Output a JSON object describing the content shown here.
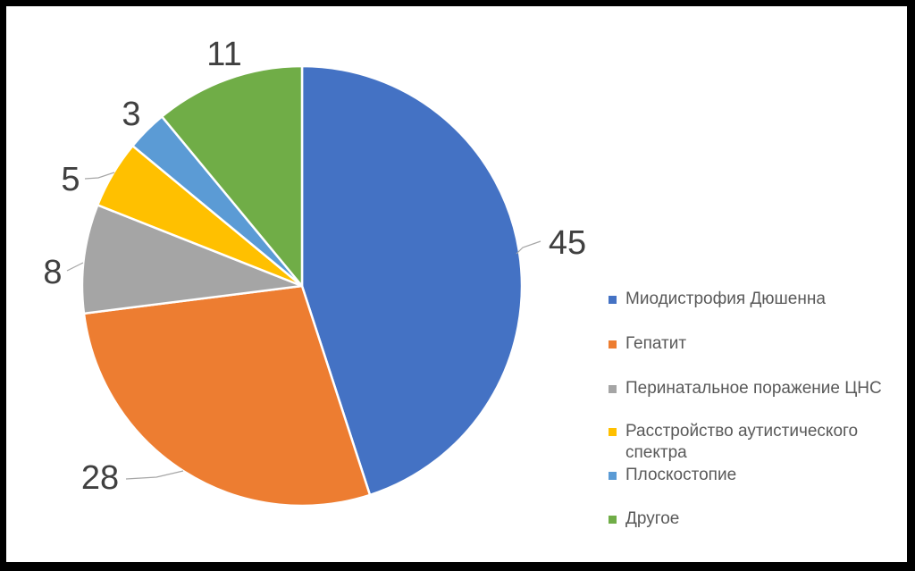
{
  "chart_data": {
    "type": "pie",
    "title": "",
    "categories": [
      "Миодистрофия Дюшенна",
      "Гепатит",
      "Перинатальное поражение ЦНС",
      "Расстройство аутистического спектра",
      "Плоскостопие",
      "Другое"
    ],
    "values": [
      45,
      28,
      8,
      5,
      3,
      11
    ],
    "colors": [
      "#4472C4",
      "#ED7D31",
      "#A5A5A5",
      "#FFC000",
      "#5B9BD5",
      "#70AD47"
    ],
    "legend_position": "right",
    "data_labels": [
      "45",
      "28",
      "8",
      "5",
      "3",
      "11"
    ]
  },
  "legend": {
    "items": [
      {
        "label": "Миодистрофия Дюшенна",
        "color": "#4472C4"
      },
      {
        "label": "Гепатит",
        "color": "#ED7D31"
      },
      {
        "label": "Перинатальное поражение ЦНС",
        "color": "#A5A5A5"
      },
      {
        "label": "Расстройство аутистического спектра",
        "color": "#FFC000"
      },
      {
        "label": "Плоскостопие",
        "color": "#5B9BD5"
      },
      {
        "label": "Другое",
        "color": "#70AD47"
      }
    ]
  }
}
